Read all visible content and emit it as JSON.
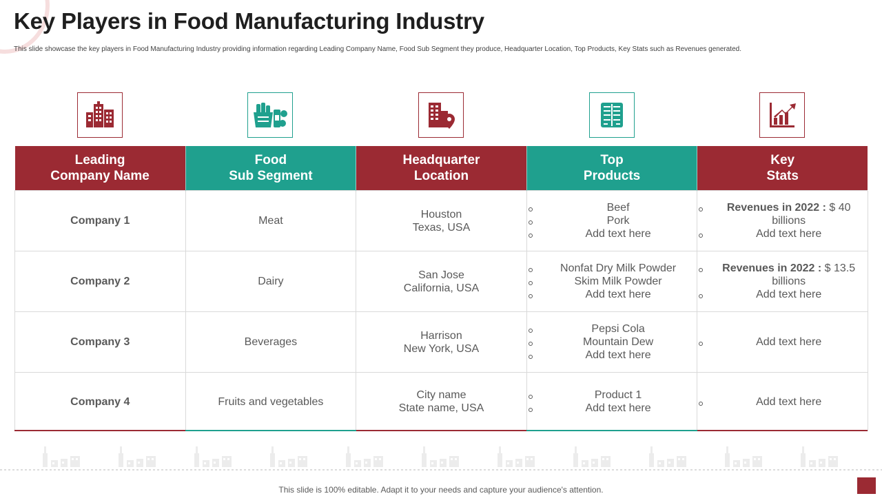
{
  "title": "Key Players in Food Manufacturing Industry",
  "subtitle": "This slide showcase the key players in Food Manufacturing Industry providing information regarding Leading Company Name, Food Sub Segment they produce, Headquarter Location, Top Products, Key Stats such as Revenues generated.",
  "icons": [
    "buildings-icon",
    "grocery-basket-icon",
    "building-location-icon",
    "product-list-icon",
    "growth-chart-icon"
  ],
  "colors": {
    "red": "#9b2a33",
    "teal": "#1fa08e"
  },
  "columns": [
    {
      "line1": "Leading",
      "line2": "Company Name"
    },
    {
      "line1": "Food",
      "line2": "Sub Segment"
    },
    {
      "line1": "Headquarter",
      "line2": "Location"
    },
    {
      "line1": "Top",
      "line2": "Products"
    },
    {
      "line1": "Key",
      "line2": "Stats"
    }
  ],
  "rows": [
    {
      "company": "Company 1",
      "segment": "Meat",
      "location": {
        "city": "Houston",
        "region": "Texas, USA"
      },
      "products": [
        "Beef",
        "Pork",
        "Add text here"
      ],
      "stats": {
        "label": "Revenues in 2022 :",
        "value": " $ 40 billions",
        "extra": "Add text here"
      }
    },
    {
      "company": "Company 2",
      "segment": "Dairy",
      "location": {
        "city": "San Jose",
        "region": "California, USA"
      },
      "products": [
        "Nonfat Dry Milk Powder",
        "Skim Milk Powder",
        "Add text here"
      ],
      "stats": {
        "label": "Revenues in 2022 :",
        "value": " $ 13.5 billions",
        "extra": "Add text here"
      }
    },
    {
      "company": "Company 3",
      "segment": "Beverages",
      "location": {
        "city": "Harrison",
        "region": "New York, USA"
      },
      "products": [
        "Pepsi Cola",
        "Mountain Dew",
        "Add text here"
      ],
      "stats": {
        "extra": "Add text here"
      }
    },
    {
      "company": "Company 4",
      "segment": "Fruits and vegetables",
      "location": {
        "city": "City name",
        "region": "State name, USA"
      },
      "products": [
        "Product 1",
        "Add text here"
      ],
      "stats": {
        "extra": "Add text here"
      }
    }
  ],
  "footer": "This slide is 100% editable. Adapt it to your needs and capture your audience's attention."
}
